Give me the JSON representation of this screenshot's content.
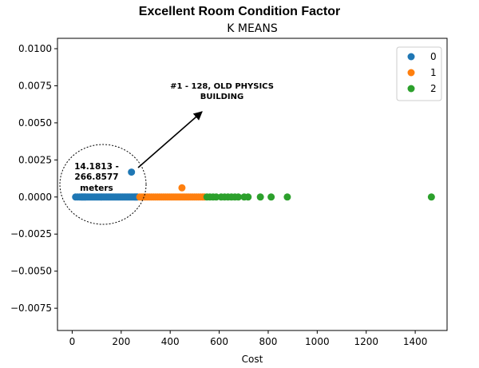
{
  "chart_data": {
    "type": "scatter",
    "suptitle": "Excellent Room Condition Factor",
    "title": "K MEANS",
    "xlabel": "Cost",
    "ylabel": "",
    "xlim": [
      -60,
      1530
    ],
    "ylim": [
      -0.009,
      0.0107
    ],
    "xticks": [
      0,
      200,
      400,
      600,
      800,
      1000,
      1200,
      1400
    ],
    "yticks": [
      -0.0075,
      -0.005,
      -0.0025,
      0.0,
      0.0025,
      0.005,
      0.0075,
      0.01
    ],
    "xtick_labels": [
      "0",
      "200",
      "400",
      "600",
      "800",
      "1000",
      "1200",
      "1400"
    ],
    "ytick_labels": [
      "−0.0075",
      "−0.0050",
      "−0.0025",
      "0.0000",
      "0.0025",
      "0.0050",
      "0.0075",
      "0.0100"
    ],
    "grid": false,
    "legend_position": "top-right",
    "series": [
      {
        "name": "0",
        "color": "#1f77b4",
        "points": [
          [
            14,
            0
          ],
          [
            22,
            0
          ],
          [
            30,
            0
          ],
          [
            36,
            0
          ],
          [
            40,
            0
          ],
          [
            44,
            0
          ],
          [
            48,
            0
          ],
          [
            52,
            0
          ],
          [
            56,
            0
          ],
          [
            62,
            0
          ],
          [
            68,
            0
          ],
          [
            74,
            0
          ],
          [
            80,
            0
          ],
          [
            86,
            0
          ],
          [
            92,
            0
          ],
          [
            98,
            0
          ],
          [
            104,
            0
          ],
          [
            110,
            0
          ],
          [
            116,
            0
          ],
          [
            122,
            0
          ],
          [
            128,
            0
          ],
          [
            134,
            0
          ],
          [
            140,
            0
          ],
          [
            146,
            0
          ],
          [
            152,
            0
          ],
          [
            158,
            0
          ],
          [
            164,
            0
          ],
          [
            170,
            0
          ],
          [
            176,
            0
          ],
          [
            182,
            0
          ],
          [
            188,
            0
          ],
          [
            194,
            0
          ],
          [
            200,
            0
          ],
          [
            206,
            0
          ],
          [
            212,
            0
          ],
          [
            218,
            0
          ],
          [
            224,
            0
          ],
          [
            230,
            0
          ],
          [
            236,
            0
          ],
          [
            242,
            0
          ],
          [
            248,
            0
          ],
          [
            254,
            0
          ],
          [
            258,
            0
          ],
          [
            262,
            0
          ],
          [
            266,
            0
          ],
          [
            242,
            0.00168
          ]
        ]
      },
      {
        "name": "1",
        "color": "#ff7f0e",
        "points": [
          [
            276,
            0
          ],
          [
            284,
            0
          ],
          [
            292,
            0
          ],
          [
            300,
            0
          ],
          [
            308,
            0
          ],
          [
            316,
            0
          ],
          [
            324,
            0
          ],
          [
            332,
            0
          ],
          [
            340,
            0
          ],
          [
            348,
            0
          ],
          [
            356,
            0
          ],
          [
            364,
            0
          ],
          [
            372,
            0
          ],
          [
            380,
            0
          ],
          [
            388,
            0
          ],
          [
            396,
            0
          ],
          [
            404,
            0
          ],
          [
            412,
            0
          ],
          [
            420,
            0
          ],
          [
            428,
            0
          ],
          [
            436,
            0
          ],
          [
            444,
            0
          ],
          [
            452,
            0
          ],
          [
            460,
            0
          ],
          [
            468,
            0
          ],
          [
            476,
            0
          ],
          [
            484,
            0
          ],
          [
            492,
            0
          ],
          [
            500,
            0
          ],
          [
            508,
            0
          ],
          [
            516,
            0
          ],
          [
            524,
            0
          ],
          [
            532,
            0
          ],
          [
            540,
            0
          ],
          [
            448,
            0.00062
          ]
        ]
      },
      {
        "name": "2",
        "color": "#2ca02c",
        "points": [
          [
            550,
            0
          ],
          [
            562,
            0
          ],
          [
            575,
            0
          ],
          [
            588,
            0
          ],
          [
            608,
            0
          ],
          [
            622,
            0
          ],
          [
            636,
            0
          ],
          [
            650,
            0
          ],
          [
            664,
            0
          ],
          [
            678,
            0
          ],
          [
            702,
            0
          ],
          [
            718,
            0
          ],
          [
            768,
            0
          ],
          [
            812,
            0
          ],
          [
            878,
            0
          ],
          [
            1466,
            0
          ]
        ]
      }
    ],
    "annotations": {
      "arrow_label": "#1 - 128, OLD PHYSICS BUILDING",
      "arrow_label_line1": "#1 - 128, OLD PHYSICS",
      "arrow_label_line2": "BUILDING",
      "circle_label_line1": "14.1813 -",
      "circle_label_line2": "266.8577",
      "circle_label_line3": "meters"
    }
  }
}
